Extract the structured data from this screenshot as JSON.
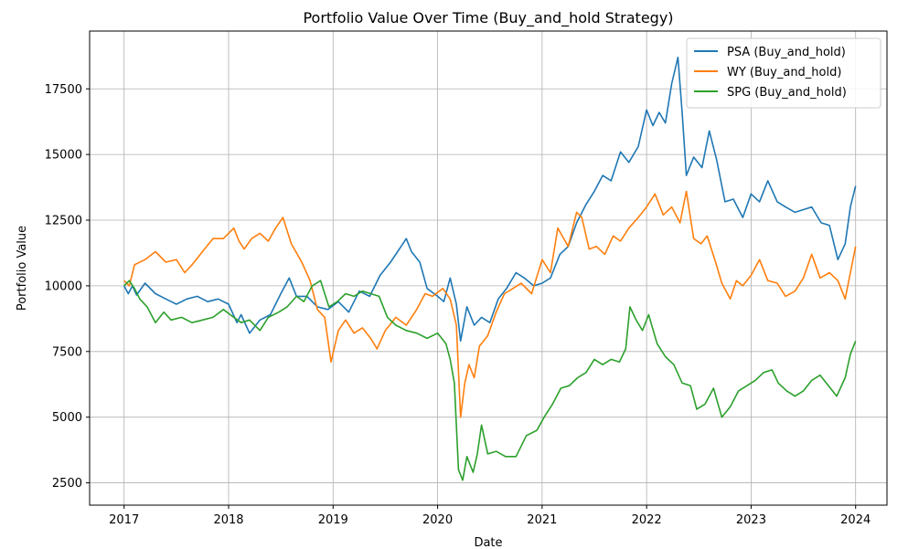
{
  "chart_data": {
    "type": "line",
    "title": "Portfolio Value Over Time (Buy_and_hold Strategy)",
    "xlabel": "Date",
    "ylabel": "Portfolio Value",
    "xlim": [
      2016.67,
      2024.3
    ],
    "ylim": [
      1650,
      19700
    ],
    "x_ticks": [
      2017,
      2018,
      2019,
      2020,
      2021,
      2022,
      2023,
      2024
    ],
    "y_ticks": [
      2500,
      5000,
      7500,
      10000,
      12500,
      15000,
      17500
    ],
    "grid": true,
    "legend_position": "top-right",
    "series": [
      {
        "name": "PSA (Buy_and_hold)",
        "color": "#1f77b4",
        "points": [
          [
            2017.0,
            10000
          ],
          [
            2017.04,
            9700
          ],
          [
            2017.08,
            10000
          ],
          [
            2017.12,
            9650
          ],
          [
            2017.2,
            10100
          ],
          [
            2017.3,
            9700
          ],
          [
            2017.4,
            9500
          ],
          [
            2017.5,
            9300
          ],
          [
            2017.6,
            9500
          ],
          [
            2017.7,
            9600
          ],
          [
            2017.8,
            9400
          ],
          [
            2017.9,
            9500
          ],
          [
            2018.0,
            9300
          ],
          [
            2018.08,
            8600
          ],
          [
            2018.12,
            8900
          ],
          [
            2018.2,
            8200
          ],
          [
            2018.3,
            8700
          ],
          [
            2018.4,
            8900
          ],
          [
            2018.5,
            9700
          ],
          [
            2018.58,
            10300
          ],
          [
            2018.65,
            9600
          ],
          [
            2018.75,
            9600
          ],
          [
            2018.85,
            9200
          ],
          [
            2018.95,
            9100
          ],
          [
            2019.05,
            9400
          ],
          [
            2019.15,
            9000
          ],
          [
            2019.25,
            9800
          ],
          [
            2019.35,
            9600
          ],
          [
            2019.45,
            10400
          ],
          [
            2019.55,
            10900
          ],
          [
            2019.65,
            11500
          ],
          [
            2019.7,
            11800
          ],
          [
            2019.75,
            11300
          ],
          [
            2019.83,
            10900
          ],
          [
            2019.9,
            9900
          ],
          [
            2020.0,
            9600
          ],
          [
            2020.06,
            9400
          ],
          [
            2020.12,
            10300
          ],
          [
            2020.18,
            9300
          ],
          [
            2020.22,
            7900
          ],
          [
            2020.28,
            9200
          ],
          [
            2020.35,
            8500
          ],
          [
            2020.42,
            8800
          ],
          [
            2020.5,
            8600
          ],
          [
            2020.58,
            9500
          ],
          [
            2020.66,
            9900
          ],
          [
            2020.75,
            10500
          ],
          [
            2020.83,
            10300
          ],
          [
            2020.92,
            10000
          ],
          [
            2021.0,
            10100
          ],
          [
            2021.08,
            10300
          ],
          [
            2021.17,
            11200
          ],
          [
            2021.25,
            11500
          ],
          [
            2021.33,
            12400
          ],
          [
            2021.42,
            13100
          ],
          [
            2021.5,
            13600
          ],
          [
            2021.58,
            14200
          ],
          [
            2021.66,
            14000
          ],
          [
            2021.75,
            15100
          ],
          [
            2021.83,
            14700
          ],
          [
            2021.92,
            15300
          ],
          [
            2022.0,
            16700
          ],
          [
            2022.06,
            16100
          ],
          [
            2022.12,
            16600
          ],
          [
            2022.18,
            16200
          ],
          [
            2022.24,
            17700
          ],
          [
            2022.3,
            18700
          ],
          [
            2022.34,
            16600
          ],
          [
            2022.38,
            14200
          ],
          [
            2022.45,
            14900
          ],
          [
            2022.53,
            14500
          ],
          [
            2022.6,
            15900
          ],
          [
            2022.67,
            14800
          ],
          [
            2022.75,
            13200
          ],
          [
            2022.83,
            13300
          ],
          [
            2022.92,
            12600
          ],
          [
            2023.0,
            13500
          ],
          [
            2023.08,
            13200
          ],
          [
            2023.16,
            14000
          ],
          [
            2023.25,
            13200
          ],
          [
            2023.33,
            13000
          ],
          [
            2023.42,
            12800
          ],
          [
            2023.5,
            12900
          ],
          [
            2023.58,
            13000
          ],
          [
            2023.67,
            12400
          ],
          [
            2023.75,
            12300
          ],
          [
            2023.83,
            11000
          ],
          [
            2023.9,
            11600
          ],
          [
            2023.95,
            13000
          ],
          [
            2024.0,
            13800
          ]
        ]
      },
      {
        "name": "WY (Buy_and_hold)",
        "color": "#ff7f0e",
        "points": [
          [
            2017.0,
            10200
          ],
          [
            2017.05,
            10000
          ],
          [
            2017.1,
            10800
          ],
          [
            2017.2,
            11000
          ],
          [
            2017.3,
            11300
          ],
          [
            2017.4,
            10900
          ],
          [
            2017.5,
            11000
          ],
          [
            2017.58,
            10500
          ],
          [
            2017.65,
            10800
          ],
          [
            2017.75,
            11300
          ],
          [
            2017.85,
            11800
          ],
          [
            2017.95,
            11800
          ],
          [
            2018.05,
            12200
          ],
          [
            2018.1,
            11700
          ],
          [
            2018.15,
            11400
          ],
          [
            2018.22,
            11800
          ],
          [
            2018.3,
            12000
          ],
          [
            2018.38,
            11700
          ],
          [
            2018.45,
            12200
          ],
          [
            2018.52,
            12600
          ],
          [
            2018.6,
            11600
          ],
          [
            2018.7,
            10900
          ],
          [
            2018.78,
            10200
          ],
          [
            2018.85,
            9100
          ],
          [
            2018.92,
            8800
          ],
          [
            2018.98,
            7100
          ],
          [
            2019.05,
            8300
          ],
          [
            2019.12,
            8700
          ],
          [
            2019.2,
            8200
          ],
          [
            2019.28,
            8400
          ],
          [
            2019.36,
            8000
          ],
          [
            2019.42,
            7600
          ],
          [
            2019.5,
            8300
          ],
          [
            2019.6,
            8800
          ],
          [
            2019.7,
            8500
          ],
          [
            2019.8,
            9100
          ],
          [
            2019.88,
            9700
          ],
          [
            2019.95,
            9600
          ],
          [
            2020.05,
            9900
          ],
          [
            2020.12,
            9500
          ],
          [
            2020.18,
            8500
          ],
          [
            2020.22,
            5000
          ],
          [
            2020.26,
            6300
          ],
          [
            2020.3,
            7000
          ],
          [
            2020.35,
            6500
          ],
          [
            2020.4,
            7700
          ],
          [
            2020.48,
            8100
          ],
          [
            2020.56,
            9000
          ],
          [
            2020.64,
            9700
          ],
          [
            2020.72,
            9900
          ],
          [
            2020.8,
            10100
          ],
          [
            2020.9,
            9700
          ],
          [
            2021.0,
            11000
          ],
          [
            2021.08,
            10500
          ],
          [
            2021.15,
            12200
          ],
          [
            2021.25,
            11500
          ],
          [
            2021.33,
            12800
          ],
          [
            2021.38,
            12600
          ],
          [
            2021.45,
            11400
          ],
          [
            2021.52,
            11500
          ],
          [
            2021.6,
            11200
          ],
          [
            2021.68,
            11900
          ],
          [
            2021.75,
            11700
          ],
          [
            2021.83,
            12200
          ],
          [
            2021.92,
            12600
          ],
          [
            2022.0,
            13000
          ],
          [
            2022.08,
            13500
          ],
          [
            2022.16,
            12700
          ],
          [
            2022.24,
            13000
          ],
          [
            2022.32,
            12400
          ],
          [
            2022.38,
            13600
          ],
          [
            2022.45,
            11800
          ],
          [
            2022.52,
            11600
          ],
          [
            2022.58,
            11900
          ],
          [
            2022.66,
            10900
          ],
          [
            2022.72,
            10100
          ],
          [
            2022.8,
            9500
          ],
          [
            2022.86,
            10200
          ],
          [
            2022.92,
            10000
          ],
          [
            2023.0,
            10400
          ],
          [
            2023.08,
            11000
          ],
          [
            2023.16,
            10200
          ],
          [
            2023.25,
            10100
          ],
          [
            2023.33,
            9600
          ],
          [
            2023.42,
            9800
          ],
          [
            2023.5,
            10300
          ],
          [
            2023.58,
            11200
          ],
          [
            2023.66,
            10300
          ],
          [
            2023.75,
            10500
          ],
          [
            2023.83,
            10200
          ],
          [
            2023.9,
            9500
          ],
          [
            2023.95,
            10500
          ],
          [
            2024.0,
            11500
          ]
        ]
      },
      {
        "name": "SPG (Buy_and_hold)",
        "color": "#2ca02c",
        "points": [
          [
            2017.0,
            10000
          ],
          [
            2017.05,
            10200
          ],
          [
            2017.1,
            9900
          ],
          [
            2017.15,
            9500
          ],
          [
            2017.22,
            9200
          ],
          [
            2017.3,
            8600
          ],
          [
            2017.38,
            9000
          ],
          [
            2017.45,
            8700
          ],
          [
            2017.55,
            8800
          ],
          [
            2017.65,
            8600
          ],
          [
            2017.75,
            8700
          ],
          [
            2017.85,
            8800
          ],
          [
            2017.95,
            9100
          ],
          [
            2018.05,
            8800
          ],
          [
            2018.12,
            8600
          ],
          [
            2018.2,
            8700
          ],
          [
            2018.3,
            8300
          ],
          [
            2018.38,
            8800
          ],
          [
            2018.48,
            9000
          ],
          [
            2018.56,
            9200
          ],
          [
            2018.65,
            9600
          ],
          [
            2018.72,
            9400
          ],
          [
            2018.8,
            10000
          ],
          [
            2018.88,
            10200
          ],
          [
            2018.96,
            9200
          ],
          [
            2019.04,
            9400
          ],
          [
            2019.12,
            9700
          ],
          [
            2019.2,
            9600
          ],
          [
            2019.28,
            9800
          ],
          [
            2019.36,
            9700
          ],
          [
            2019.44,
            9600
          ],
          [
            2019.52,
            8800
          ],
          [
            2019.6,
            8500
          ],
          [
            2019.7,
            8300
          ],
          [
            2019.8,
            8200
          ],
          [
            2019.9,
            8000
          ],
          [
            2020.0,
            8200
          ],
          [
            2020.08,
            7800
          ],
          [
            2020.12,
            7200
          ],
          [
            2020.16,
            6300
          ],
          [
            2020.2,
            3000
          ],
          [
            2020.24,
            2600
          ],
          [
            2020.28,
            3500
          ],
          [
            2020.34,
            2900
          ],
          [
            2020.38,
            3600
          ],
          [
            2020.42,
            4700
          ],
          [
            2020.48,
            3600
          ],
          [
            2020.56,
            3700
          ],
          [
            2020.65,
            3500
          ],
          [
            2020.75,
            3500
          ],
          [
            2020.85,
            4300
          ],
          [
            2020.95,
            4500
          ],
          [
            2021.02,
            5000
          ],
          [
            2021.1,
            5500
          ],
          [
            2021.18,
            6100
          ],
          [
            2021.26,
            6200
          ],
          [
            2021.34,
            6500
          ],
          [
            2021.42,
            6700
          ],
          [
            2021.5,
            7200
          ],
          [
            2021.58,
            7000
          ],
          [
            2021.66,
            7200
          ],
          [
            2021.74,
            7100
          ],
          [
            2021.8,
            7600
          ],
          [
            2021.84,
            9200
          ],
          [
            2021.9,
            8700
          ],
          [
            2021.96,
            8300
          ],
          [
            2022.02,
            8900
          ],
          [
            2022.1,
            7800
          ],
          [
            2022.18,
            7300
          ],
          [
            2022.26,
            7000
          ],
          [
            2022.34,
            6300
          ],
          [
            2022.42,
            6200
          ],
          [
            2022.48,
            5300
          ],
          [
            2022.56,
            5500
          ],
          [
            2022.64,
            6100
          ],
          [
            2022.72,
            5000
          ],
          [
            2022.8,
            5400
          ],
          [
            2022.88,
            6000
          ],
          [
            2022.96,
            6200
          ],
          [
            2023.04,
            6400
          ],
          [
            2023.12,
            6700
          ],
          [
            2023.2,
            6800
          ],
          [
            2023.26,
            6300
          ],
          [
            2023.34,
            6000
          ],
          [
            2023.42,
            5800
          ],
          [
            2023.5,
            6000
          ],
          [
            2023.58,
            6400
          ],
          [
            2023.66,
            6600
          ],
          [
            2023.74,
            6200
          ],
          [
            2023.82,
            5800
          ],
          [
            2023.9,
            6500
          ],
          [
            2023.95,
            7400
          ],
          [
            2024.0,
            7900
          ]
        ]
      }
    ]
  }
}
